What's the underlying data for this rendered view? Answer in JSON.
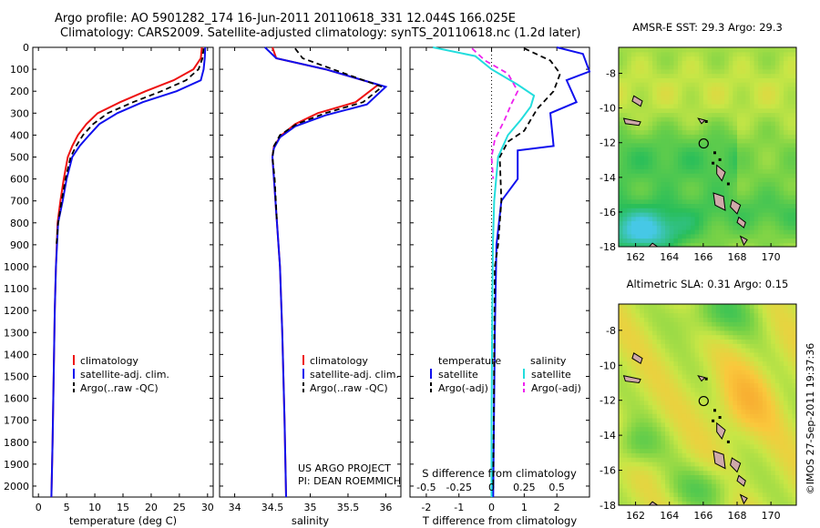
{
  "title_lines": [
    "Argo profile: AO 5901282_174 16-Jun-2011 20110618_331 12.044S 166.025E",
    "Climatology: CARS2009. Satellite-adjusted climatology: synTS_20110618.nc (1.2d later)"
  ],
  "credit_lines": [
    "US ARGO PROJECT",
    "PI: DEAN ROEMMICH"
  ],
  "watermark": "©IMOS 27-Sep-2011 19:37:36",
  "colors": {
    "red": "#ee1111",
    "blue": "#1010ee",
    "black": "#000000",
    "cyan": "#22dddd",
    "magenta": "#ee22ee"
  },
  "chart_data": [
    {
      "type": "line",
      "id": "temperature",
      "xlabel": "temperature (deg C)",
      "xlim": [
        -1,
        31
      ],
      "ylim": [
        2050,
        0
      ],
      "xticks": [
        0,
        5,
        10,
        15,
        20,
        25,
        30
      ],
      "yticks": [
        0,
        100,
        200,
        300,
        400,
        500,
        600,
        700,
        800,
        900,
        1000,
        1100,
        1200,
        1300,
        1400,
        1500,
        1600,
        1700,
        1800,
        1900,
        2000
      ],
      "legend": [
        "climatology",
        "satellite-adj. clim.",
        "Argo(..raw -QC)"
      ],
      "series": [
        {
          "name": "climatology",
          "color": "red",
          "dash": false,
          "x": [
            29.0,
            28.8,
            27.5,
            24.0,
            19.0,
            14.5,
            10.5,
            8.5,
            7.0,
            6.0,
            5.2,
            4.5,
            3.9,
            3.4,
            3.1,
            2.9,
            2.7,
            2.5,
            2.3
          ],
          "y": [
            0,
            50,
            100,
            150,
            200,
            250,
            300,
            350,
            400,
            450,
            500,
            600,
            700,
            800,
            1000,
            1200,
            1500,
            1800,
            2050
          ]
        },
        {
          "name": "satellite-adj. clim.",
          "color": "blue",
          "dash": false,
          "x": [
            29.6,
            29.5,
            29.3,
            28.8,
            24.5,
            18.5,
            14.0,
            10.8,
            9.0,
            7.3,
            6.0,
            5.0,
            4.3,
            3.5,
            3.1,
            2.9,
            2.7,
            2.5,
            2.3
          ],
          "y": [
            0,
            50,
            100,
            150,
            200,
            250,
            300,
            350,
            400,
            450,
            500,
            600,
            700,
            800,
            1000,
            1200,
            1500,
            1800,
            2050
          ]
        },
        {
          "name": "Argo(..raw -QC)",
          "color": "black",
          "dash": true,
          "x": [
            29.3,
            29.1,
            28.4,
            26.2,
            21.8,
            16.8,
            12.3,
            9.7,
            7.9,
            6.7,
            5.7,
            4.8,
            4.1,
            3.5,
            3.2
          ],
          "y": [
            5,
            50,
            100,
            150,
            200,
            250,
            300,
            350,
            400,
            450,
            500,
            600,
            700,
            800,
            900
          ]
        }
      ]
    },
    {
      "type": "line",
      "id": "salinity",
      "xlabel": "salinity",
      "xlim": [
        33.8,
        36.2
      ],
      "ylim": [
        2050,
        0
      ],
      "xticks": [
        34,
        34.5,
        35,
        35.5,
        36
      ],
      "legend": [
        "climatology",
        "satellite-adj. clim.",
        "Argo(..raw -QC)"
      ],
      "series": [
        {
          "name": "climatology",
          "color": "red",
          "dash": false,
          "x": [
            34.5,
            34.55,
            35.2,
            35.9,
            35.6,
            35.1,
            34.8,
            34.62,
            34.52,
            34.5,
            34.52,
            34.56,
            34.6,
            34.63,
            34.66,
            34.68
          ],
          "y": [
            0,
            50,
            100,
            170,
            250,
            300,
            350,
            400,
            450,
            500,
            600,
            800,
            1000,
            1300,
            1700,
            2050
          ]
        },
        {
          "name": "satellite-adj. clim.",
          "color": "blue",
          "dash": false,
          "x": [
            34.4,
            34.55,
            35.2,
            36.0,
            35.75,
            35.2,
            34.8,
            34.6,
            34.52,
            34.5,
            34.52,
            34.56,
            34.6,
            34.63,
            34.66,
            34.68
          ],
          "y": [
            0,
            50,
            100,
            180,
            260,
            310,
            360,
            410,
            460,
            500,
            600,
            800,
            1000,
            1300,
            1700,
            2050
          ]
        },
        {
          "name": "Argo(..raw -QC)",
          "color": "black",
          "dash": true,
          "x": [
            34.8,
            34.9,
            35.3,
            35.95,
            35.7,
            35.2,
            34.82,
            34.6,
            34.52,
            34.5,
            34.53,
            34.56
          ],
          "y": [
            5,
            50,
            100,
            180,
            250,
            300,
            350,
            400,
            450,
            500,
            600,
            800
          ]
        }
      ]
    },
    {
      "type": "line",
      "id": "difference",
      "xlabel": "T difference from climatology",
      "xlabel_top": "S difference from climatology",
      "xlim": [
        -2.5,
        3.0
      ],
      "ylim": [
        2050,
        0
      ],
      "xticks_bottom": [
        -2,
        -1,
        0,
        1,
        2
      ],
      "xticks_top": [
        -0.5,
        -0.25,
        0,
        0.25,
        0.5
      ],
      "legend": {
        "temperature_header": "temperature",
        "salinity_header": "salinity",
        "items": [
          "satellite",
          "Argo(-adj)",
          "satellite",
          "Argo(-adj)"
        ]
      },
      "series": [
        {
          "name": "temperature satellite",
          "color": "blue",
          "dash": false,
          "x": [
            2.0,
            2.8,
            3.0,
            2.3,
            2.6,
            1.8,
            1.9,
            0.8,
            0.8,
            0.3,
            0.15,
            0.1,
            0.05
          ],
          "y": [
            0,
            30,
            110,
            150,
            250,
            300,
            450,
            470,
            600,
            700,
            900,
            1300,
            2050
          ]
        },
        {
          "name": "temperature Argo(-adj)",
          "color": "black",
          "dash": true,
          "x": [
            1.0,
            1.8,
            2.1,
            1.9,
            1.4,
            1.2,
            1.0,
            0.5,
            0.25,
            0.3,
            0.2,
            0.1,
            0.05
          ],
          "y": [
            5,
            60,
            120,
            200,
            280,
            330,
            380,
            430,
            500,
            700,
            900,
            1000,
            2000
          ]
        },
        {
          "name": "salinity satellite",
          "color": "cyan",
          "dash": false,
          "x": [
            -1.8,
            -0.5,
            0.0,
            0.8,
            1.3,
            1.2,
            0.9,
            0.5,
            0.2,
            0.08,
            0.04,
            0.02,
            0.0,
            0.0
          ],
          "y": [
            0,
            40,
            100,
            170,
            220,
            270,
            330,
            400,
            500,
            700,
            900,
            1200,
            1700,
            2050
          ]
        },
        {
          "name": "salinity Argo(-adj)",
          "color": "magenta",
          "dash": true,
          "x": [
            -0.6,
            -0.2,
            0.5,
            0.8,
            0.6,
            0.4,
            0.1,
            0.0,
            0.05
          ],
          "y": [
            5,
            60,
            120,
            200,
            260,
            330,
            420,
            500,
            600
          ]
        }
      ]
    },
    {
      "type": "heatmap",
      "id": "sst-map",
      "title": "AMSR-E SST: 29.3 Argo: 29.3",
      "xlim": [
        161,
        171.5
      ],
      "ylim": [
        -18,
        -6.5
      ],
      "xticks": [
        162,
        164,
        166,
        168,
        170
      ],
      "yticks": [
        -8,
        -10,
        -12,
        -14,
        -16,
        -18
      ],
      "marker": {
        "lon": 166.025,
        "lat": -12.044
      }
    },
    {
      "type": "heatmap",
      "id": "sla-map",
      "title": "Altimetric SLA: 0.31 Argo: 0.15",
      "xlim": [
        161,
        171.5
      ],
      "ylim": [
        -18,
        -6.5
      ],
      "xticks": [
        162,
        164,
        166,
        168,
        170
      ],
      "yticks": [
        -8,
        -10,
        -12,
        -14,
        -16,
        -18
      ],
      "marker": {
        "lon": 166.025,
        "lat": -12.044
      }
    }
  ]
}
